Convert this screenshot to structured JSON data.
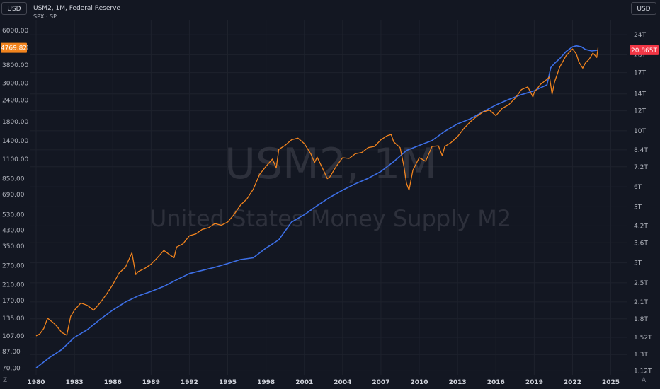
{
  "header": {
    "title": "USM2, 1M, Federal Reserve",
    "subtitle": "SPX · SP",
    "currency_left": "USD",
    "currency_right": "USD"
  },
  "watermark": {
    "symbol": "USM2, 1M",
    "description": "United States Money Supply M2"
  },
  "footer": {
    "left_icon": "Z",
    "right_icon": "A"
  },
  "colors": {
    "background": "#131722",
    "m2_line": "#3d6fe6",
    "spx_line": "#f2841e",
    "spx_badge": "#f2841e",
    "m2_badge": "#f23645",
    "axis_text": "#b2b5be"
  },
  "chart_data": {
    "type": "line",
    "x_ticks": [
      "1980",
      "1983",
      "1986",
      "1989",
      "1992",
      "1995",
      "1998",
      "2001",
      "2004",
      "2007",
      "2010",
      "2013",
      "2016",
      "2019",
      "2022",
      "2025"
    ],
    "x_range": [
      1979.5,
      2026.3
    ],
    "y_left": {
      "scale": "log",
      "range": [
        64,
        6900
      ],
      "ticks": [
        6000,
        4800,
        3800,
        3000,
        2400,
        1800,
        1400,
        1100,
        850,
        690,
        530,
        430,
        350,
        270,
        210,
        170,
        135,
        107,
        87,
        70
      ],
      "tick_labels": [
        "6000.00",
        "4800.00",
        "3800.00",
        "3000.00",
        "2400.00",
        "1800.00",
        "1400.00",
        "1100.00",
        "850.00",
        "690.00",
        "530.00",
        "430.00",
        "350.00",
        "270.00",
        "210.00",
        "170.00",
        "135.00",
        "107.00",
        "87.00",
        "70.00"
      ],
      "last_value_label": "4769.82"
    },
    "y_right": {
      "scale": "log",
      "range": [
        1.08,
        27.5
      ],
      "ticks": [
        24,
        20,
        17,
        14,
        12,
        10,
        8.4,
        7.2,
        6,
        5,
        4.2,
        3.6,
        3,
        2.5,
        2.1,
        1.8,
        1.52,
        1.3,
        1.12
      ],
      "tick_labels": [
        "24T",
        "20T",
        "17T",
        "14T",
        "12T",
        "10T",
        "8.4T",
        "7.2T",
        "6T",
        "5T",
        "4.2T",
        "3.6T",
        "3T",
        "2.5T",
        "2.1T",
        "1.8T",
        "1.52T",
        "1.3T",
        "1.12T"
      ],
      "last_value_label": "20.865T"
    },
    "series": [
      {
        "axis": "right",
        "x": [
          1980.0,
          1981.0,
          1982.0,
          1983.0,
          1984.0,
          1985.0,
          1986.0,
          1987.0,
          1988.0,
          1989.0,
          1990.0,
          1991.0,
          1992.0,
          1993.0,
          1994.0,
          1995.0,
          1996.0,
          1997.0,
          1998.0,
          1999.0,
          2000.0,
          2001.0,
          2002.0,
          2003.0,
          2004.0,
          2005.0,
          2006.0,
          2007.0,
          2008.0,
          2009.0,
          2010.0,
          2011.0,
          2012.0,
          2013.0,
          2014.0,
          2015.0,
          2016.0,
          2017.0,
          2018.0,
          2019.0,
          2020.0,
          2020.3,
          2020.6,
          2021.0,
          2021.5,
          2022.0,
          2022.3,
          2022.7,
          2023.0,
          2023.5,
          2024.0
        ],
        "y": [
          1.15,
          1.26,
          1.36,
          1.52,
          1.63,
          1.79,
          1.95,
          2.1,
          2.22,
          2.31,
          2.42,
          2.57,
          2.72,
          2.8,
          2.88,
          2.98,
          3.09,
          3.14,
          3.43,
          3.7,
          4.35,
          4.65,
          5.05,
          5.45,
          5.82,
          6.17,
          6.48,
          6.9,
          7.55,
          8.35,
          8.75,
          9.15,
          9.95,
          10.65,
          11.15,
          11.9,
          12.65,
          13.3,
          13.9,
          14.4,
          15.2,
          17.8,
          18.5,
          19.3,
          20.6,
          21.5,
          21.7,
          21.5,
          21.0,
          20.7,
          20.865
        ]
      },
      {
        "axis": "left",
        "x": [
          1980.0,
          1980.3,
          1980.6,
          1980.9,
          1981.3,
          1981.6,
          1982.0,
          1982.4,
          1982.7,
          1983.0,
          1983.5,
          1984.0,
          1984.5,
          1985.0,
          1985.5,
          1986.0,
          1986.5,
          1987.0,
          1987.5,
          1987.8,
          1988.0,
          1988.5,
          1989.0,
          1989.5,
          1990.0,
          1990.5,
          1990.8,
          1991.0,
          1991.5,
          1992.0,
          1992.5,
          1993.0,
          1993.5,
          1994.0,
          1994.5,
          1995.0,
          1995.5,
          1996.0,
          1996.5,
          1997.0,
          1997.5,
          1998.0,
          1998.5,
          1998.8,
          1999.0,
          1999.5,
          2000.0,
          2000.5,
          2001.0,
          2001.5,
          2001.8,
          2002.0,
          2002.5,
          2002.8,
          2003.0,
          2003.5,
          2004.0,
          2004.5,
          2005.0,
          2005.5,
          2006.0,
          2006.5,
          2007.0,
          2007.5,
          2007.8,
          2008.0,
          2008.5,
          2008.8,
          2009.0,
          2009.2,
          2009.5,
          2010.0,
          2010.5,
          2011.0,
          2011.5,
          2011.8,
          2012.0,
          2012.5,
          2013.0,
          2013.5,
          2014.0,
          2014.5,
          2015.0,
          2015.5,
          2016.0,
          2016.5,
          2017.0,
          2017.5,
          2018.0,
          2018.5,
          2018.9,
          2019.0,
          2019.5,
          2020.0,
          2020.2,
          2020.4,
          2020.6,
          2021.0,
          2021.5,
          2022.0,
          2022.3,
          2022.5,
          2022.8,
          2023.0,
          2023.3,
          2023.6,
          2023.9,
          2024.0
        ],
        "y": [
          107,
          110,
          118,
          135,
          128,
          122,
          112,
          108,
          138,
          150,
          165,
          160,
          150,
          165,
          185,
          210,
          245,
          265,
          320,
          240,
          250,
          260,
          275,
          300,
          330,
          310,
          300,
          345,
          360,
          400,
          410,
          435,
          445,
          470,
          460,
          480,
          530,
          600,
          650,
          740,
          900,
          1000,
          1100,
          980,
          1250,
          1320,
          1420,
          1450,
          1350,
          1180,
          1050,
          1130,
          950,
          850,
          870,
          1000,
          1120,
          1110,
          1180,
          1200,
          1280,
          1300,
          1420,
          1500,
          1520,
          1380,
          1280,
          1000,
          800,
          730,
          950,
          1120,
          1070,
          1300,
          1310,
          1150,
          1300,
          1370,
          1480,
          1650,
          1800,
          1930,
          2050,
          2100,
          1950,
          2150,
          2250,
          2450,
          2750,
          2850,
          2500,
          2650,
          2950,
          3150,
          3250,
          2590,
          3050,
          3700,
          4300,
          4700,
          4400,
          3950,
          3650,
          3900,
          4100,
          4450,
          4200,
          4769.82
        ]
      }
    ]
  }
}
